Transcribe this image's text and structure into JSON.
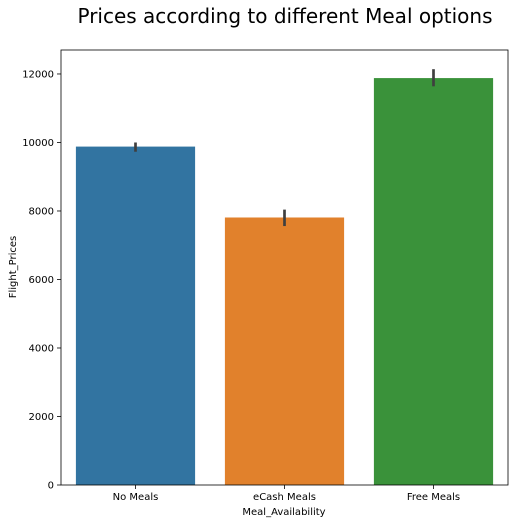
{
  "chart_data": {
    "type": "bar",
    "title": "Prices according to different Meal options",
    "xlabel": "Meal_Availability",
    "ylabel": "Flight_Prices",
    "categories": [
      "No Meals",
      "eCash Meals",
      "Free Meals"
    ],
    "values": [
      9880,
      7810,
      11880
    ],
    "error_low": [
      9730,
      7560,
      11640
    ],
    "error_high": [
      10000,
      8040,
      12140
    ],
    "colors": [
      "#3274a1",
      "#e1812c",
      "#3a923a"
    ],
    "error_color": "#3f3f3f",
    "ylim": [
      0,
      12700
    ],
    "yticks": [
      0,
      2000,
      4000,
      6000,
      8000,
      10000,
      12000
    ],
    "grid": false
  }
}
